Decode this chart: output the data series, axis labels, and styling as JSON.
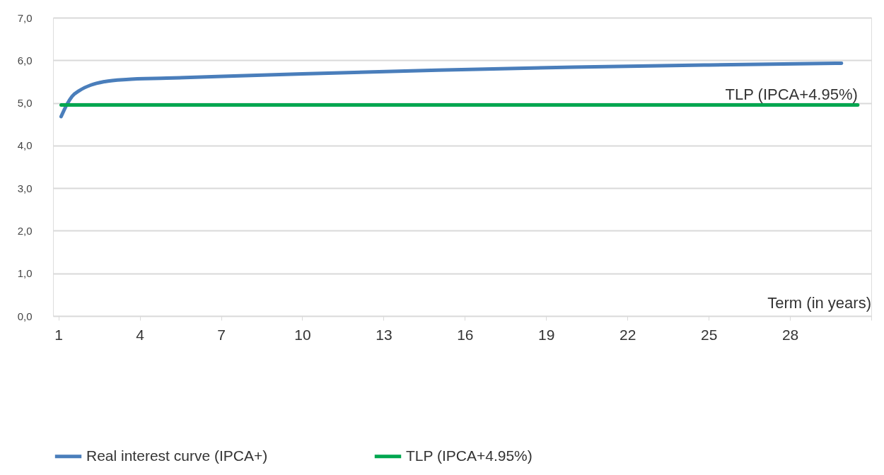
{
  "chart_data": {
    "type": "line",
    "xlabel": "Term (in years)",
    "xlim": [
      0.8,
      31
    ],
    "xticks": [
      1,
      4,
      7,
      10,
      13,
      16,
      19,
      22,
      25,
      28,
      {
        "value": 31,
        "label": null
      }
    ],
    "ylim": [
      0,
      7
    ],
    "yticks": [
      {
        "value": 0,
        "label": "0,0"
      },
      {
        "value": 1,
        "label": "1,0"
      },
      {
        "value": 2,
        "label": "2,0"
      },
      {
        "value": 3,
        "label": "3,0"
      },
      {
        "value": 4,
        "label": "4,0"
      },
      {
        "value": 5,
        "label": "5,0"
      },
      {
        "value": 6,
        "label": "6,0"
      },
      {
        "value": 7,
        "label": "7,0"
      }
    ],
    "series": [
      {
        "name": "Real interest curve (IPCA+)",
        "color": "#4a7ebb",
        "x": [
          1.1,
          1.3,
          1.5,
          1.8,
          2.2,
          2.7,
          3.5,
          5,
          10,
          15,
          20,
          25,
          29.9
        ],
        "values": [
          4.68,
          4.95,
          5.15,
          5.3,
          5.42,
          5.5,
          5.55,
          5.58,
          5.68,
          5.77,
          5.84,
          5.89,
          5.93
        ]
      },
      {
        "name": "TLP (IPCA+4.95%)",
        "color": "#00a64f",
        "x": [
          1.1,
          30.5
        ],
        "values": [
          4.95,
          4.95
        ]
      }
    ],
    "annotations": [
      {
        "text": "TLP (IPCA+4.95%)",
        "x": 30.5,
        "y": 4.95
      }
    ],
    "grid": "y",
    "legend": "bottom",
    "line_style": "solid",
    "marker": "none"
  }
}
